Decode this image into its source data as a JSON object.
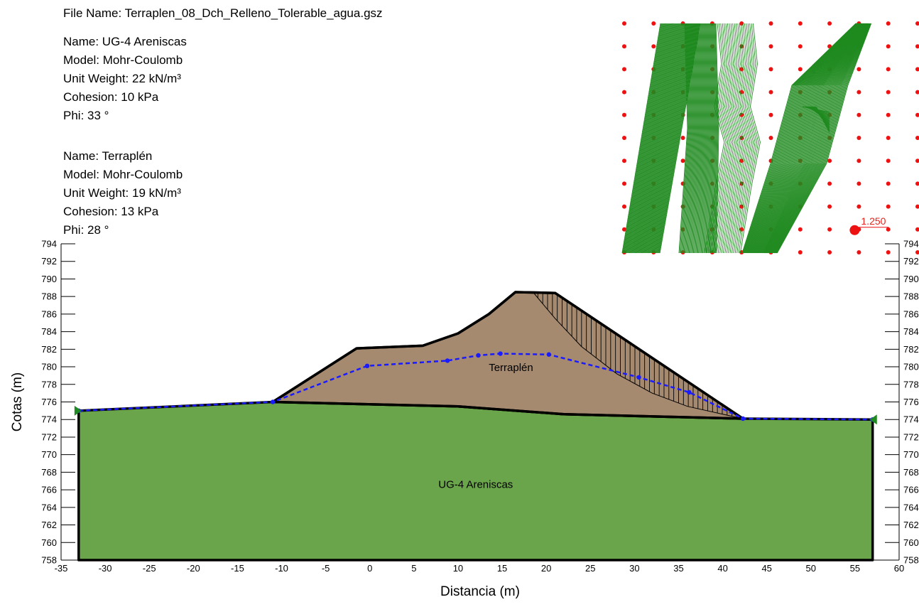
{
  "header": {
    "file_name": "File Name: Terraplen_08_Dch_Relleno_Tolerable_agua.gsz"
  },
  "materials": [
    {
      "name": "Name: UG-4 Areniscas",
      "model": "Model: Mohr-Coulomb",
      "unit_weight": "Unit Weight: 22 kN/m³",
      "cohesion": "Cohesion: 10 kPa",
      "phi": "Phi: 33 °",
      "color": "#6aa54b"
    },
    {
      "name": "Name: Terraplén",
      "model": "Model: Mohr-Coulomb",
      "unit_weight": "Unit Weight: 19 kN/m³",
      "cohesion": "Cohesion: 13 kPa",
      "phi": "Phi: 28 °",
      "color": "#a58a70"
    }
  ],
  "chart_data": {
    "type": "diagram",
    "xlabel": "Distancia (m)",
    "ylabel": "Cotas (m)",
    "xlim": [
      -35,
      60
    ],
    "ylim": [
      758,
      794
    ],
    "x_ticks": [
      -35,
      -30,
      -25,
      -20,
      -15,
      -10,
      -5,
      0,
      5,
      10,
      15,
      20,
      25,
      30,
      35,
      40,
      45,
      50,
      55,
      60
    ],
    "y_ticks": [
      758,
      760,
      762,
      764,
      766,
      768,
      770,
      772,
      774,
      776,
      778,
      780,
      782,
      784,
      786,
      788,
      790,
      792,
      794
    ],
    "regions": [
      {
        "label": "UG-4 Areniscas",
        "color": "#6aa54b",
        "label_at": [
          12,
          766.2
        ],
        "points": [
          [
            -33,
            758
          ],
          [
            -33,
            775
          ],
          [
            -11,
            776
          ],
          [
            10,
            775.5
          ],
          [
            22,
            774.6
          ],
          [
            42.3,
            774.1
          ],
          [
            57,
            774.0
          ],
          [
            57,
            758
          ]
        ]
      },
      {
        "label": "Terraplén",
        "color": "#a58a70",
        "label_at": [
          16,
          779.5
        ],
        "points": [
          [
            -11,
            776
          ],
          [
            -1.5,
            782.1
          ],
          [
            6,
            782.4
          ],
          [
            10,
            783.8
          ],
          [
            13.5,
            786.0
          ],
          [
            16.5,
            788.5
          ],
          [
            21,
            788.4
          ],
          [
            42.3,
            774.1
          ],
          [
            22,
            774.6
          ],
          [
            10,
            775.5
          ]
        ]
      }
    ],
    "piezometric_line": {
      "color": "#1a1aff",
      "points": [
        [
          -33,
          775
        ],
        [
          -11,
          776
        ],
        [
          -0.3,
          780.1
        ],
        [
          8.8,
          780.7
        ],
        [
          12.3,
          781.3
        ],
        [
          14.8,
          781.5
        ],
        [
          20.3,
          781.4
        ],
        [
          30.5,
          778.8
        ],
        [
          36.2,
          777.1
        ],
        [
          42.3,
          774.1
        ],
        [
          57,
          774.0
        ]
      ],
      "markers": [
        [
          -33,
          775
        ],
        [
          -11,
          776
        ],
        [
          -0.3,
          780.1
        ],
        [
          8.8,
          780.7
        ],
        [
          12.3,
          781.3
        ],
        [
          14.8,
          781.5
        ],
        [
          20.3,
          781.4
        ],
        [
          30.5,
          778.8
        ],
        [
          36.2,
          777.1
        ],
        [
          42.3,
          774.1
        ],
        [
          57,
          774.0
        ]
      ]
    },
    "slip_surface": {
      "color": "#000000",
      "points": [
        [
          18.5,
          788.5
        ],
        [
          21,
          785.5
        ],
        [
          24,
          782.3
        ],
        [
          28,
          779.2
        ],
        [
          32,
          777.0
        ],
        [
          36,
          775.5
        ],
        [
          40,
          774.6
        ],
        [
          42.3,
          774.1
        ]
      ]
    },
    "critical_factor_of_safety": "1.250",
    "grid": {
      "color": "#ee1111",
      "columns": 15,
      "rows": 11,
      "fs_marker_at": [
        8,
        9
      ]
    },
    "contour_color": "#1f8a1f"
  }
}
